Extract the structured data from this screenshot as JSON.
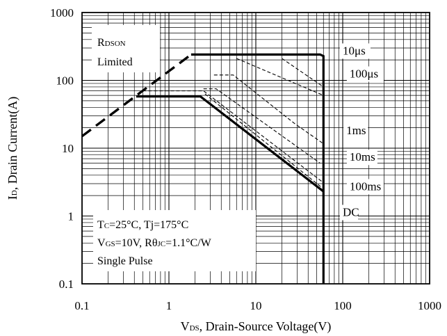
{
  "chart_data": {
    "type": "line",
    "title": "",
    "xlabel": "VDS, Drain-Source Voltage(V)",
    "xlabel_parts": [
      "V",
      "DS",
      ", Drain-Source Voltage(V)"
    ],
    "ylabel": "ID, Drain Current(A)",
    "ylabel_parts": [
      "I",
      "D",
      ", Drain Current(A)"
    ],
    "x_scale": "log",
    "y_scale": "log",
    "xlim": [
      0.1,
      1000
    ],
    "ylim": [
      0.1,
      1000
    ],
    "x_ticks": [
      {
        "value": 0.1,
        "label": "0.1"
      },
      {
        "value": 1,
        "label": "1"
      },
      {
        "value": 10,
        "label": "10"
      },
      {
        "value": 100,
        "label": "100"
      },
      {
        "value": 1000,
        "label": "1000"
      }
    ],
    "y_ticks": [
      {
        "value": 0.1,
        "label": "0.1"
      },
      {
        "value": 1,
        "label": "1"
      },
      {
        "value": 10,
        "label": "10"
      },
      {
        "value": 100,
        "label": "100"
      },
      {
        "value": 1000,
        "label": "1000"
      }
    ],
    "grid": true,
    "series": [
      {
        "name": "RDSON Limited",
        "style": "dashed-thick",
        "points": [
          [
            0.1,
            15
          ],
          [
            1.8,
            240
          ]
        ]
      },
      {
        "name": "10μs",
        "style": "solid-thick",
        "points": [
          [
            1.8,
            240
          ],
          [
            55,
            240
          ],
          [
            60,
            228
          ],
          [
            60,
            0.1
          ]
        ]
      },
      {
        "name": "100μs",
        "style": "dashed-thin",
        "points": [
          [
            3.3,
            120
          ],
          [
            5.5,
            120
          ],
          [
            28,
            23
          ],
          [
            58,
            12
          ]
        ]
      },
      {
        "name": "1ms",
        "style": "dashed-thin",
        "points": [
          [
            2.5,
            75
          ],
          [
            3.5,
            75
          ],
          [
            55,
            6
          ]
        ]
      },
      {
        "name": "10ms",
        "style": "dashed-thin",
        "points": [
          [
            0.5,
            70
          ],
          [
            2.5,
            70
          ],
          [
            58,
            3.2
          ]
        ]
      },
      {
        "name": "100ms",
        "style": "dashed-thin",
        "points": [
          [
            2.6,
            63
          ],
          [
            58,
            2.6
          ]
        ]
      },
      {
        "name": "DC",
        "style": "solid-thick",
        "points": [
          [
            0.42,
            58
          ],
          [
            2.3,
            58
          ],
          [
            60,
            2.3
          ]
        ]
      },
      {
        "name": "",
        "style": "dashed-thin",
        "points": [
          [
            6,
            210
          ],
          [
            60,
            60
          ]
        ]
      },
      {
        "name": "",
        "style": "dashed-thin",
        "points": [
          [
            20,
            210
          ],
          [
            60,
            80
          ]
        ]
      }
    ],
    "curve_labels": [
      {
        "text": "10μs",
        "series": "10μs",
        "x": 100,
        "y": 240
      },
      {
        "text": "100μs",
        "series": "100μs",
        "x": 120,
        "y": 110
      },
      {
        "text": "1ms",
        "series": "1ms",
        "x": 110,
        "y": 16
      },
      {
        "text": "10ms",
        "series": "10ms",
        "x": 120,
        "y": 6.5
      },
      {
        "text": "100ms",
        "series": "100ms",
        "x": 120,
        "y": 2.4
      },
      {
        "text": "DC",
        "series": "DC",
        "x": 100,
        "y": 1
      }
    ],
    "annotations": {
      "rdson": {
        "parts": [
          "R",
          "DSON"
        ],
        "line2": "Limited"
      },
      "conditions": [
        {
          "parts": [
            "T",
            "C",
            "=25°C, Tj=175°C"
          ]
        },
        {
          "parts": [
            "V",
            "GS",
            "=10V, Rθ",
            "JC",
            "=1.1°C/W"
          ]
        },
        {
          "parts": [
            "Single Pulse"
          ]
        }
      ]
    }
  }
}
